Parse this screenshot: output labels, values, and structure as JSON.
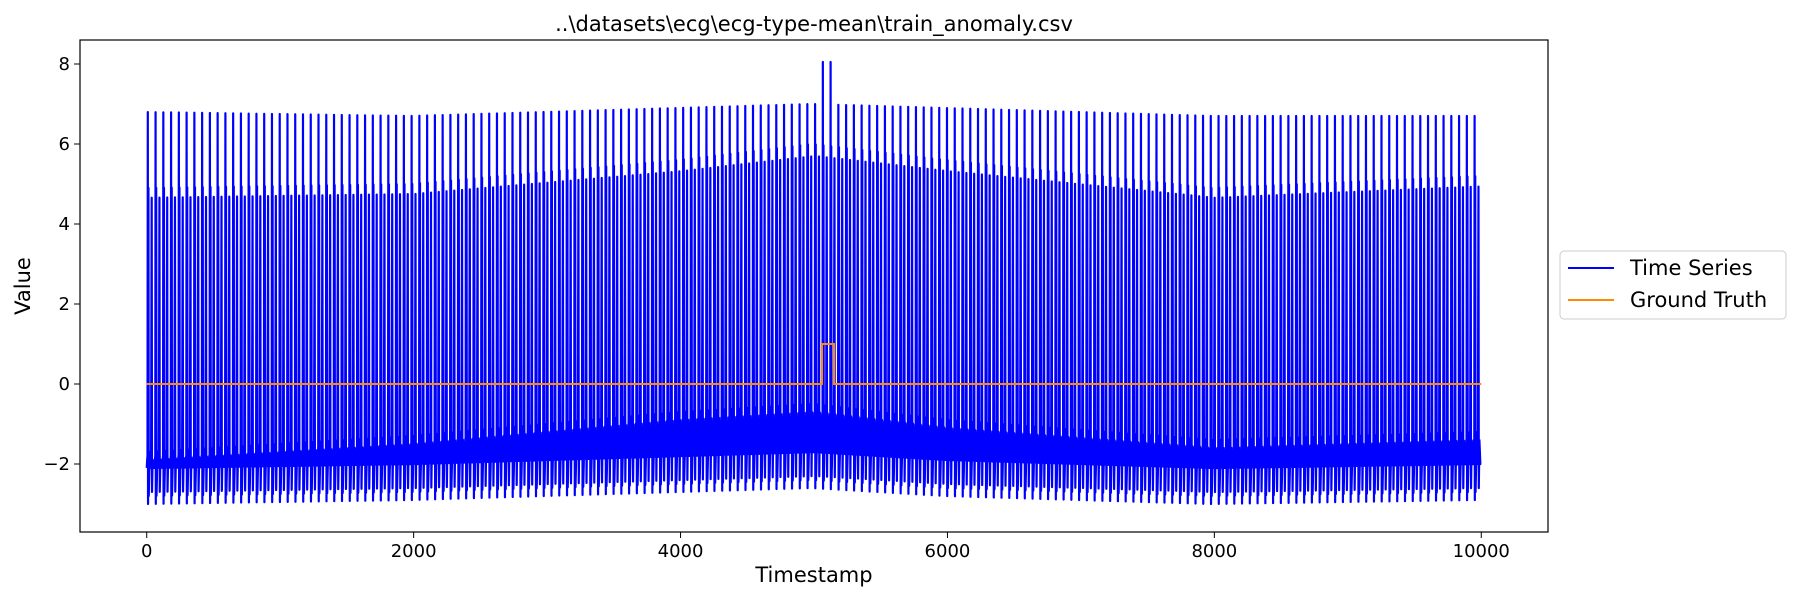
{
  "chart_data": {
    "type": "line",
    "title": "..\\datasets\\ecg\\ecg-type-mean\\train_anomaly.csv",
    "xlabel": "Timestamp",
    "ylabel": "Value",
    "xlim": [
      -500,
      10500
    ],
    "ylim": [
      -3.7,
      8.6
    ],
    "xticks": [
      0,
      2000,
      4000,
      6000,
      8000,
      10000
    ],
    "xtick_labels": [
      "0",
      "2000",
      "4000",
      "6000",
      "8000",
      "10000"
    ],
    "yticks": [
      -2,
      0,
      2,
      4,
      6,
      8
    ],
    "ytick_labels": [
      "−2",
      "0",
      "2",
      "4",
      "6",
      "8"
    ],
    "grid": false,
    "legend_position": "right, outside plot",
    "series": [
      {
        "name": "Time Series",
        "color": "#0000ff",
        "beats": 172,
        "x_range": [
          0,
          10000
        ],
        "r_peak_envelope": {
          "x": [
            0,
            2000,
            4000,
            5000,
            6000,
            8000,
            10000
          ],
          "y": [
            6.8,
            6.7,
            6.9,
            7.0,
            6.9,
            6.7,
            6.7
          ]
        },
        "secondary_peak_envelope": {
          "x": [
            0,
            2000,
            4000,
            5000,
            6000,
            8000,
            10000
          ],
          "y": [
            4.9,
            5.0,
            5.6,
            6.0,
            5.6,
            4.9,
            5.2
          ]
        },
        "trough_envelope": {
          "x": [
            0,
            2000,
            4000,
            5000,
            6000,
            8000,
            10000
          ],
          "y": [
            -3.0,
            -2.9,
            -2.7,
            -2.6,
            -2.8,
            -3.0,
            -2.9
          ]
        },
        "upper_baseline_envelope": {
          "x": [
            0,
            2000,
            4000,
            5000,
            6000,
            8000,
            10000
          ],
          "y": [
            -1.9,
            -1.5,
            -0.9,
            -0.7,
            -1.1,
            -1.6,
            -1.4
          ]
        },
        "anomaly_segment": {
          "x_range": [
            5050,
            5150
          ],
          "peak": 8.05
        }
      },
      {
        "name": "Ground Truth",
        "color": "#ff8c00",
        "x": [
          0,
          5060,
          5060,
          5150,
          5150,
          10000
        ],
        "y": [
          0,
          0,
          1,
          1,
          0,
          0
        ]
      }
    ]
  }
}
